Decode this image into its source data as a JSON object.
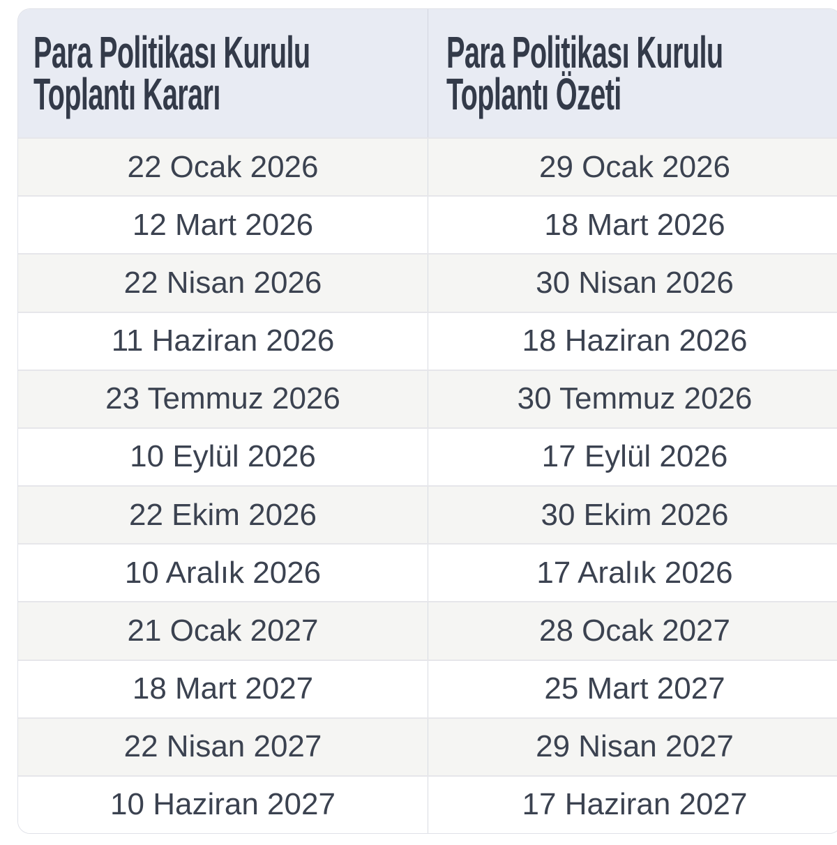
{
  "chart_data": {
    "type": "table",
    "columns": [
      {
        "title_line1": "Para Politikası Kurulu",
        "title_line2": "Toplantı Kararı"
      },
      {
        "title_line1": "Para Politikası Kurulu",
        "title_line2": "Toplantı Özeti"
      }
    ],
    "rows": [
      [
        "22 Ocak 2026",
        "29 Ocak 2026"
      ],
      [
        "12 Mart 2026",
        "18 Mart 2026"
      ],
      [
        "22 Nisan 2026",
        "30 Nisan 2026"
      ],
      [
        "11 Haziran 2026",
        "18 Haziran 2026"
      ],
      [
        "23 Temmuz 2026",
        "30 Temmuz 2026"
      ],
      [
        "10 Eylül 2026",
        "17 Eylül 2026"
      ],
      [
        "22 Ekim 2026",
        "30 Ekim 2026"
      ],
      [
        "10 Aralık 2026",
        "17 Aralık 2026"
      ],
      [
        "21 Ocak 2027",
        "28 Ocak 2027"
      ],
      [
        "18 Mart 2027",
        "25 Mart 2027"
      ],
      [
        "22 Nisan 2027",
        "29 Nisan 2027"
      ],
      [
        "10 Haziran 2027",
        "17 Haziran 2027"
      ]
    ]
  },
  "colors": {
    "header_bg": "#e8ebf3",
    "header_text": "#333a49",
    "row_alt_bg": "#f5f5f3",
    "row_bg": "#ffffff",
    "cell_text": "#3b4250",
    "border": "#e6e6ea",
    "divider": "#d5d9e0"
  }
}
